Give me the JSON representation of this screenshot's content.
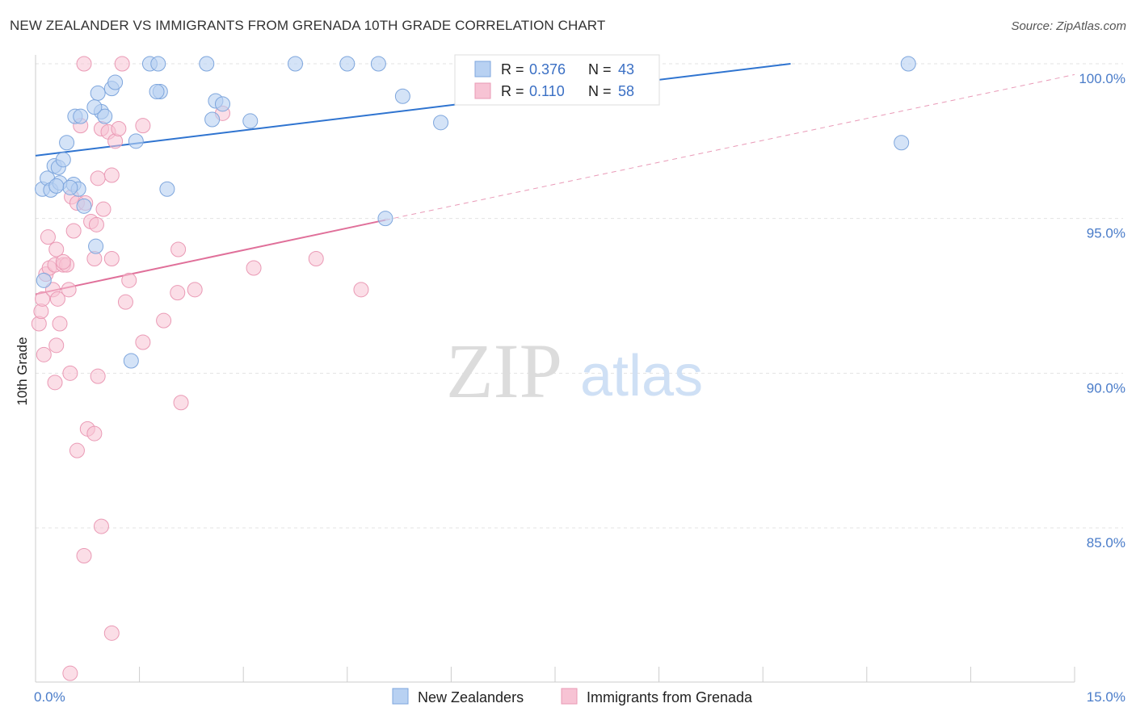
{
  "header": {
    "title": "NEW ZEALANDER VS IMMIGRANTS FROM GRENADA 10TH GRADE CORRELATION CHART",
    "source": "Source: ZipAtlas.com"
  },
  "watermark": {
    "zip": "ZIP",
    "atlas": "atlas"
  },
  "legend": {
    "series1": {
      "r_label": "R =",
      "r_value": "0.376",
      "n_label": "N =",
      "n_value": "43"
    },
    "series2": {
      "r_label": "R =",
      "r_value": "0.110",
      "n_label": "N =",
      "n_value": "58"
    }
  },
  "chart_data": {
    "type": "scatter",
    "title": "NEW ZEALANDER VS IMMIGRANTS FROM GRENADA 10TH GRADE CORRELATION CHART",
    "xlabel": "",
    "ylabel": "10th Grade",
    "xlim": [
      0,
      15
    ],
    "ylim": [
      80.0,
      100.4
    ],
    "x_tick_labels": [
      "0.0%",
      "15.0%"
    ],
    "y_ticks": [
      85,
      90,
      95,
      100
    ],
    "y_tick_labels": [
      "85.0%",
      "90.0%",
      "95.0%",
      "100.0%"
    ],
    "grid": "horizontal dashed",
    "colors": {
      "blue_fill": "#b8d1f2",
      "blue_stroke": "#7ea6dd",
      "blue_line": "#2f74d0",
      "pink_fill": "#f7c3d4",
      "pink_stroke": "#ea9ab5",
      "pink_line": "#e0709a",
      "tick_text": "#4a7cc9"
    },
    "series": [
      {
        "name": "New Zealanders",
        "color": "#7ea6dd",
        "r": 0.376,
        "n": 43,
        "trend": {
          "x": [
            0.0,
            10.9
          ],
          "y": [
            97.03,
            100.0
          ]
        },
        "points": [
          [
            0.12,
            93.0
          ],
          [
            0.1,
            95.95
          ],
          [
            0.17,
            96.3
          ],
          [
            0.22,
            95.92
          ],
          [
            0.27,
            96.7
          ],
          [
            0.33,
            96.65
          ],
          [
            0.4,
            96.9
          ],
          [
            0.35,
            96.15
          ],
          [
            0.55,
            96.1
          ],
          [
            0.62,
            95.95
          ],
          [
            0.7,
            95.4
          ],
          [
            0.57,
            98.3
          ],
          [
            0.65,
            98.3
          ],
          [
            0.9,
            99.05
          ],
          [
            0.95,
            98.45
          ],
          [
            1.1,
            99.2
          ],
          [
            1.15,
            99.4
          ],
          [
            1.0,
            98.3
          ],
          [
            0.85,
            98.6
          ],
          [
            0.45,
            97.45
          ],
          [
            1.65,
            100.0
          ],
          [
            1.77,
            100.0
          ],
          [
            1.8,
            99.1
          ],
          [
            1.75,
            99.1
          ],
          [
            2.47,
            100.0
          ],
          [
            2.6,
            98.8
          ],
          [
            2.7,
            98.7
          ],
          [
            2.55,
            98.2
          ],
          [
            3.1,
            98.15
          ],
          [
            3.75,
            100.0
          ],
          [
            4.5,
            100.0
          ],
          [
            4.95,
            100.0
          ],
          [
            5.3,
            98.95
          ],
          [
            5.85,
            98.1
          ],
          [
            1.45,
            97.5
          ],
          [
            1.9,
            95.95
          ],
          [
            0.87,
            94.1
          ],
          [
            1.38,
            90.4
          ],
          [
            5.05,
            95.0
          ],
          [
            12.6,
            100.0
          ],
          [
            12.5,
            97.45
          ],
          [
            0.5,
            96.0
          ],
          [
            0.3,
            96.05
          ]
        ]
      },
      {
        "name": "Immigrants from Grenada",
        "color": "#ea9ab5",
        "r": 0.11,
        "n": 58,
        "trend": {
          "x": [
            0.0,
            5.05
          ],
          "y": [
            92.55,
            94.95
          ]
        },
        "trend_extended": {
          "x": [
            5.05,
            15.0
          ],
          "y": [
            94.95,
            99.65
          ]
        },
        "points": [
          [
            0.05,
            91.6
          ],
          [
            0.08,
            92.0
          ],
          [
            0.1,
            92.4
          ],
          [
            0.12,
            90.6
          ],
          [
            0.15,
            93.2
          ],
          [
            0.18,
            94.4
          ],
          [
            0.2,
            93.4
          ],
          [
            0.25,
            92.7
          ],
          [
            0.28,
            93.5
          ],
          [
            0.3,
            94.0
          ],
          [
            0.35,
            91.6
          ],
          [
            0.3,
            90.9
          ],
          [
            0.32,
            92.4
          ],
          [
            0.28,
            89.7
          ],
          [
            0.4,
            93.5
          ],
          [
            0.45,
            93.5
          ],
          [
            0.5,
            90.0
          ],
          [
            0.48,
            92.7
          ],
          [
            0.52,
            95.7
          ],
          [
            0.55,
            94.6
          ],
          [
            0.6,
            95.5
          ],
          [
            0.65,
            98.0
          ],
          [
            0.72,
            95.5
          ],
          [
            0.8,
            94.9
          ],
          [
            0.85,
            93.7
          ],
          [
            0.9,
            96.3
          ],
          [
            0.95,
            97.9
          ],
          [
            0.88,
            94.8
          ],
          [
            0.98,
            95.3
          ],
          [
            1.05,
            97.8
          ],
          [
            1.1,
            93.7
          ],
          [
            1.15,
            97.5
          ],
          [
            1.2,
            97.9
          ],
          [
            1.3,
            92.3
          ],
          [
            1.35,
            93.0
          ],
          [
            1.1,
            96.4
          ],
          [
            1.25,
            100.0
          ],
          [
            0.7,
            100.0
          ],
          [
            2.06,
            94.0
          ],
          [
            1.55,
            98.0
          ],
          [
            1.55,
            91.0
          ],
          [
            2.1,
            89.05
          ],
          [
            2.05,
            92.6
          ],
          [
            2.3,
            92.7
          ],
          [
            1.85,
            91.7
          ],
          [
            2.7,
            98.4
          ],
          [
            3.15,
            93.4
          ],
          [
            4.05,
            93.7
          ],
          [
            4.7,
            92.7
          ],
          [
            0.75,
            88.2
          ],
          [
            0.85,
            88.05
          ],
          [
            0.6,
            87.5
          ],
          [
            0.95,
            85.05
          ],
          [
            0.7,
            84.1
          ],
          [
            1.1,
            81.6
          ],
          [
            0.5,
            80.3
          ],
          [
            0.9,
            89.9
          ],
          [
            0.4,
            93.6
          ]
        ]
      }
    ]
  },
  "bottom_legend": [
    "New Zealanders",
    "Immigrants from Grenada"
  ]
}
